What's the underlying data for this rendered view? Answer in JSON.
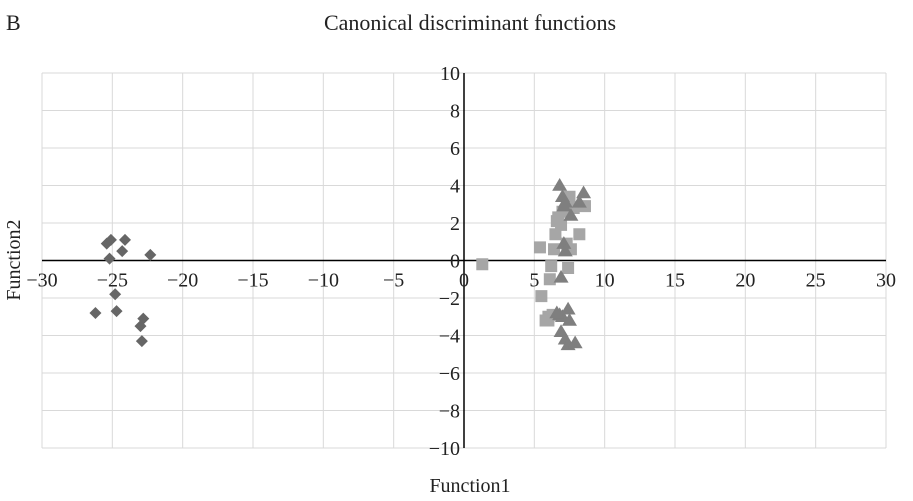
{
  "panel_label": "B",
  "chart_data": {
    "type": "scatter",
    "title": "Canonical discriminant functions",
    "xlabel": "Function1",
    "ylabel": "Function2",
    "xlim": [
      -30,
      30
    ],
    "ylim": [
      -10,
      10
    ],
    "x_major_step": 5,
    "y_major_step": 2,
    "x_ticks": [
      "−30",
      "−25",
      "−20",
      "−15",
      "−10",
      "−5",
      "0",
      "5",
      "10",
      "15",
      "20",
      "25",
      "30"
    ],
    "y_ticks": [
      "−10",
      "−8",
      "−6",
      "−4",
      "−2",
      "0",
      "2",
      "4",
      "6",
      "8",
      "10"
    ],
    "grid": true,
    "legend": "none",
    "series": [
      {
        "marker": "diamond",
        "color": "#666666",
        "points": [
          [
            -25.4,
            0.9
          ],
          [
            -25.1,
            1.1
          ],
          [
            -24.1,
            1.1
          ],
          [
            -24.3,
            0.5
          ],
          [
            -25.2,
            0.1
          ],
          [
            -22.3,
            0.3
          ],
          [
            -24.8,
            -1.8
          ],
          [
            -26.2,
            -2.8
          ],
          [
            -24.7,
            -2.7
          ],
          [
            -22.8,
            -3.1
          ],
          [
            -23.0,
            -3.5
          ],
          [
            -22.9,
            -4.3
          ]
        ]
      },
      {
        "marker": "square",
        "color": "#a6a6a6",
        "points": [
          [
            1.3,
            -0.2
          ],
          [
            5.4,
            0.7
          ],
          [
            5.5,
            -1.9
          ],
          [
            5.8,
            -3.2
          ],
          [
            6.0,
            -3.0
          ],
          [
            6.1,
            -1.0
          ],
          [
            6.2,
            -0.3
          ],
          [
            6.4,
            0.6
          ],
          [
            6.5,
            1.4
          ],
          [
            6.6,
            2.1
          ],
          [
            6.7,
            2.3
          ],
          [
            6.9,
            1.9
          ],
          [
            7.0,
            2.6
          ],
          [
            7.3,
            0.9
          ],
          [
            7.4,
            -0.4
          ],
          [
            7.5,
            3.4
          ],
          [
            7.6,
            0.6
          ],
          [
            7.8,
            2.8
          ],
          [
            8.2,
            1.4
          ],
          [
            8.6,
            2.9
          ],
          [
            6.3,
            -2.9
          ],
          [
            6.0,
            -3.2
          ]
        ]
      },
      {
        "marker": "triangle",
        "color": "#7f7f7f",
        "points": [
          [
            6.8,
            4.0
          ],
          [
            7.0,
            3.4
          ],
          [
            7.1,
            2.9
          ],
          [
            7.2,
            3.1
          ],
          [
            7.6,
            2.4
          ],
          [
            8.2,
            3.1
          ],
          [
            8.5,
            3.6
          ],
          [
            7.1,
            0.9
          ],
          [
            7.2,
            0.5
          ],
          [
            6.9,
            -0.9
          ],
          [
            6.8,
            -2.9
          ],
          [
            7.0,
            -3.0
          ],
          [
            7.4,
            -2.6
          ],
          [
            7.5,
            -3.2
          ],
          [
            6.9,
            -3.8
          ],
          [
            7.2,
            -4.2
          ],
          [
            7.4,
            -4.5
          ],
          [
            7.9,
            -4.4
          ],
          [
            6.6,
            -2.8
          ]
        ]
      }
    ]
  }
}
